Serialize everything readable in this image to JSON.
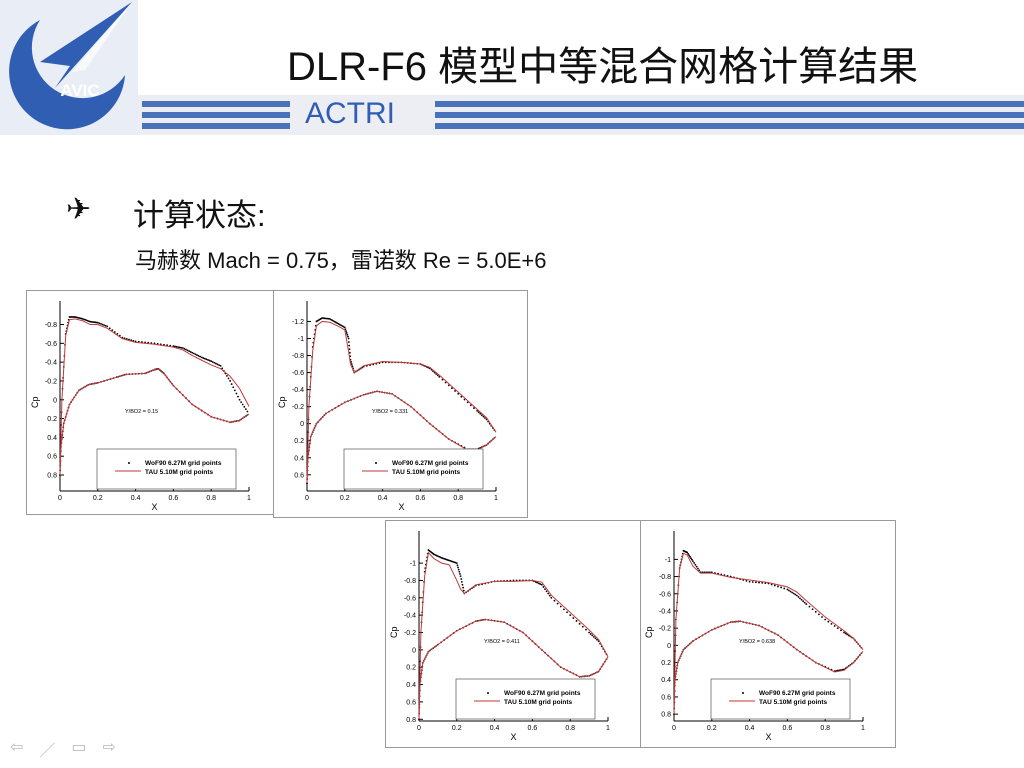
{
  "header": {
    "title": "DLR-F6 模型中等混合网格计算结果",
    "org": "ACTRI",
    "logo_text": "AVIC"
  },
  "bullet": {
    "icon": "airplane-icon",
    "heading": "计算状态:",
    "condition": "马赫数 Mach = 0.75，雷诺数 Re = 5.0E+6"
  },
  "colors": {
    "brand_blue": "#2f5eb3",
    "tau_line": "#c0393b",
    "wof_points": "#000000"
  },
  "nav": {
    "icons": [
      "arrow-left-icon",
      "pen-icon",
      "menu-icon",
      "arrow-right-icon"
    ]
  },
  "chart_data": [
    {
      "type": "line",
      "xlabel": "X",
      "ylabel": "Cp",
      "annotation": "Y/BO2 = 0.15",
      "ylim": [
        -1.05,
        0.97
      ],
      "xlim": [
        0,
        1
      ],
      "y_inverted": true,
      "xticks": [
        0,
        0.2,
        0.4,
        0.6,
        0.8,
        1
      ],
      "yticks": [
        -0.8,
        -0.6,
        -0.4,
        -0.2,
        0,
        0.2,
        0.4,
        0.6,
        0.8
      ],
      "legend": "bottom-center",
      "series": [
        {
          "name": "WoF90 6.27M grid points",
          "style": "points",
          "upper": {
            "x": [
              0,
              0.01,
              0.03,
              0.05,
              0.08,
              0.12,
              0.16,
              0.2,
              0.25,
              0.33,
              0.4,
              0.5,
              0.6,
              0.65,
              0.7,
              0.75,
              0.8,
              0.85,
              0.9,
              0.95,
              1.0
            ],
            "cp": [
              0.8,
              0.0,
              -0.7,
              -0.88,
              -0.88,
              -0.86,
              -0.83,
              -0.82,
              -0.78,
              -0.66,
              -0.62,
              -0.6,
              -0.57,
              -0.55,
              -0.5,
              -0.45,
              -0.41,
              -0.36,
              -0.2,
              0.0,
              0.15
            ]
          },
          "lower": {
            "x": [
              0,
              0.005,
              0.02,
              0.05,
              0.1,
              0.15,
              0.2,
              0.3,
              0.35,
              0.45,
              0.5,
              0.52,
              0.55,
              0.6,
              0.7,
              0.8,
              0.9,
              0.95,
              1.0
            ],
            "cp": [
              0.8,
              0.5,
              0.25,
              0.05,
              -0.1,
              -0.16,
              -0.18,
              -0.24,
              -0.27,
              -0.28,
              -0.32,
              -0.33,
              -0.28,
              -0.15,
              0.05,
              0.18,
              0.24,
              0.22,
              0.15
            ]
          }
        },
        {
          "name": "TAU 5.10M grid points",
          "style": "line",
          "upper": {
            "x": [
              0,
              0.01,
              0.03,
              0.05,
              0.08,
              0.12,
              0.16,
              0.2,
              0.25,
              0.33,
              0.4,
              0.5,
              0.6,
              0.65,
              0.7,
              0.75,
              0.8,
              0.85,
              0.9,
              0.95,
              1.0
            ],
            "cp": [
              0.8,
              0.0,
              -0.68,
              -0.85,
              -0.86,
              -0.84,
              -0.8,
              -0.8,
              -0.76,
              -0.65,
              -0.61,
              -0.59,
              -0.56,
              -0.53,
              -0.47,
              -0.42,
              -0.37,
              -0.33,
              -0.25,
              -0.12,
              0.07
            ]
          },
          "lower": {
            "x": [
              0,
              0.005,
              0.02,
              0.05,
              0.1,
              0.15,
              0.2,
              0.3,
              0.35,
              0.45,
              0.5,
              0.52,
              0.55,
              0.6,
              0.7,
              0.8,
              0.9,
              0.95,
              1.0
            ],
            "cp": [
              0.8,
              0.5,
              0.25,
              0.05,
              -0.1,
              -0.16,
              -0.18,
              -0.24,
              -0.27,
              -0.28,
              -0.32,
              -0.33,
              -0.28,
              -0.15,
              0.05,
              0.18,
              0.24,
              0.22,
              0.15
            ]
          }
        }
      ]
    },
    {
      "type": "line",
      "xlabel": "X",
      "ylabel": "Cp",
      "annotation": "Y/BO2 = 0.331",
      "ylim": [
        -1.44,
        0.79
      ],
      "xlim": [
        0,
        1
      ],
      "y_inverted": true,
      "xticks": [
        0,
        0.2,
        0.4,
        0.6,
        0.8,
        1
      ],
      "yticks": [
        -1.2,
        -1,
        -0.8,
        -0.6,
        -0.4,
        -0.2,
        0,
        0.2,
        0.4,
        0.6
      ],
      "legend": "bottom-center",
      "series": [
        {
          "name": "WoF90 6.27M grid points",
          "style": "points",
          "upper": {
            "x": [
              0,
              0.01,
              0.03,
              0.05,
              0.08,
              0.12,
              0.16,
              0.2,
              0.22,
              0.23,
              0.25,
              0.3,
              0.4,
              0.5,
              0.6,
              0.65,
              0.7,
              0.8,
              0.9,
              0.95,
              1.0
            ],
            "cp": [
              0.7,
              -0.2,
              -0.9,
              -1.2,
              -1.24,
              -1.23,
              -1.18,
              -1.13,
              -1.0,
              -0.75,
              -0.6,
              -0.67,
              -0.72,
              -0.72,
              -0.7,
              -0.65,
              -0.55,
              -0.35,
              -0.15,
              -0.05,
              0.1
            ]
          },
          "lower": {
            "x": [
              0,
              0.005,
              0.02,
              0.05,
              0.1,
              0.2,
              0.3,
              0.37,
              0.45,
              0.55,
              0.65,
              0.75,
              0.85,
              0.9,
              0.95,
              1.0
            ],
            "cp": [
              0.7,
              0.4,
              0.15,
              0.0,
              -0.12,
              -0.25,
              -0.34,
              -0.38,
              -0.35,
              -0.2,
              0.0,
              0.18,
              0.3,
              0.3,
              0.25,
              0.15
            ]
          }
        },
        {
          "name": "TAU 5.10M grid points",
          "style": "line",
          "upper": {
            "x": [
              0,
              0.01,
              0.03,
              0.05,
              0.08,
              0.12,
              0.16,
              0.2,
              0.22,
              0.23,
              0.25,
              0.3,
              0.4,
              0.5,
              0.6,
              0.65,
              0.7,
              0.8,
              0.9,
              0.95,
              1.0
            ],
            "cp": [
              0.7,
              -0.2,
              -0.85,
              -1.15,
              -1.2,
              -1.19,
              -1.15,
              -1.1,
              -0.85,
              -0.7,
              -0.6,
              -0.68,
              -0.73,
              -0.72,
              -0.7,
              -0.66,
              -0.57,
              -0.37,
              -0.17,
              -0.07,
              0.1
            ]
          },
          "lower": {
            "x": [
              0,
              0.005,
              0.02,
              0.05,
              0.1,
              0.2,
              0.3,
              0.37,
              0.45,
              0.55,
              0.65,
              0.75,
              0.85,
              0.9,
              0.95,
              1.0
            ],
            "cp": [
              0.7,
              0.4,
              0.15,
              0.0,
              -0.12,
              -0.25,
              -0.34,
              -0.38,
              -0.35,
              -0.2,
              0.0,
              0.18,
              0.31,
              0.31,
              0.25,
              0.15
            ]
          }
        }
      ]
    },
    {
      "type": "line",
      "xlabel": "X",
      "ylabel": "Cp",
      "annotation": "Y/BO2 = 0.411",
      "ylim": [
        -1.37,
        0.82
      ],
      "xlim": [
        0,
        1
      ],
      "y_inverted": true,
      "xticks": [
        0,
        0.2,
        0.4,
        0.6,
        0.8,
        1
      ],
      "yticks": [
        -1,
        -0.8,
        -0.6,
        -0.4,
        -0.2,
        0,
        0.2,
        0.4,
        0.6,
        0.8
      ],
      "legend": "bottom-center",
      "series": [
        {
          "name": "WoF90 6.27M grid points",
          "style": "points",
          "upper": {
            "x": [
              0,
              0.01,
              0.03,
              0.05,
              0.08,
              0.12,
              0.16,
              0.2,
              0.22,
              0.24,
              0.3,
              0.4,
              0.5,
              0.6,
              0.65,
              0.7,
              0.8,
              0.9,
              0.95,
              1.0
            ],
            "cp": [
              0.8,
              -0.2,
              -0.9,
              -1.15,
              -1.1,
              -1.06,
              -1.03,
              -1.0,
              -0.85,
              -0.65,
              -0.74,
              -0.79,
              -0.8,
              -0.8,
              -0.75,
              -0.6,
              -0.4,
              -0.2,
              -0.1,
              0.08
            ]
          },
          "lower": {
            "x": [
              0,
              0.005,
              0.02,
              0.05,
              0.1,
              0.2,
              0.3,
              0.35,
              0.45,
              0.55,
              0.65,
              0.75,
              0.85,
              0.9,
              0.95,
              1.0
            ],
            "cp": [
              0.8,
              0.4,
              0.15,
              0.02,
              -0.06,
              -0.22,
              -0.33,
              -0.35,
              -0.32,
              -0.2,
              0.0,
              0.2,
              0.31,
              0.3,
              0.25,
              0.08
            ]
          }
        },
        {
          "name": "TAU 5.10M grid points",
          "style": "line",
          "upper": {
            "x": [
              0,
              0.01,
              0.03,
              0.05,
              0.08,
              0.12,
              0.16,
              0.2,
              0.22,
              0.24,
              0.3,
              0.4,
              0.5,
              0.6,
              0.65,
              0.7,
              0.8,
              0.9,
              0.95,
              1.0
            ],
            "cp": [
              0.8,
              -0.2,
              -0.85,
              -1.12,
              -1.05,
              -1.0,
              -0.98,
              -0.8,
              -0.7,
              -0.65,
              -0.75,
              -0.79,
              -0.79,
              -0.8,
              -0.78,
              -0.63,
              -0.43,
              -0.23,
              -0.12,
              0.08
            ]
          },
          "lower": {
            "x": [
              0,
              0.005,
              0.02,
              0.05,
              0.1,
              0.2,
              0.3,
              0.35,
              0.45,
              0.55,
              0.65,
              0.75,
              0.85,
              0.9,
              0.95,
              1.0
            ],
            "cp": [
              0.8,
              0.4,
              0.15,
              0.02,
              -0.06,
              -0.22,
              -0.33,
              -0.35,
              -0.32,
              -0.2,
              0.0,
              0.2,
              0.31,
              0.3,
              0.25,
              0.08
            ]
          }
        }
      ]
    },
    {
      "type": "line",
      "xlabel": "X",
      "ylabel": "Cp",
      "annotation": "Y/BO2 = 0.638",
      "ylim": [
        -1.33,
        0.88
      ],
      "xlim": [
        0,
        1
      ],
      "y_inverted": true,
      "xticks": [
        0,
        0.2,
        0.4,
        0.6,
        0.8,
        1
      ],
      "yticks": [
        -1,
        -0.8,
        -0.6,
        -0.4,
        -0.2,
        0,
        0.2,
        0.4,
        0.6,
        0.8
      ],
      "legend": "bottom-center",
      "series": [
        {
          "name": "WoF90 6.27M grid points",
          "style": "points",
          "upper": {
            "x": [
              0,
              0.01,
              0.03,
              0.05,
              0.07,
              0.1,
              0.14,
              0.2,
              0.3,
              0.4,
              0.5,
              0.6,
              0.65,
              0.7,
              0.8,
              0.9,
              0.95,
              1.0
            ],
            "cp": [
              0.8,
              -0.3,
              -0.9,
              -1.1,
              -1.08,
              -0.98,
              -0.85,
              -0.85,
              -0.8,
              -0.74,
              -0.72,
              -0.65,
              -0.58,
              -0.48,
              -0.3,
              -0.15,
              -0.08,
              0.05
            ]
          },
          "lower": {
            "x": [
              0,
              0.005,
              0.02,
              0.05,
              0.1,
              0.2,
              0.3,
              0.35,
              0.45,
              0.55,
              0.65,
              0.75,
              0.85,
              0.9,
              0.95,
              1.0
            ],
            "cp": [
              0.8,
              0.4,
              0.2,
              0.05,
              -0.05,
              -0.18,
              -0.27,
              -0.28,
              -0.23,
              -0.12,
              0.05,
              0.2,
              0.3,
              0.28,
              0.2,
              0.07
            ]
          }
        },
        {
          "name": "TAU 5.10M grid points",
          "style": "line",
          "upper": {
            "x": [
              0,
              0.01,
              0.03,
              0.05,
              0.07,
              0.1,
              0.14,
              0.2,
              0.3,
              0.4,
              0.5,
              0.6,
              0.65,
              0.7,
              0.8,
              0.9,
              0.95,
              1.0
            ],
            "cp": [
              0.8,
              -0.3,
              -0.9,
              -1.07,
              -1.05,
              -0.92,
              -0.84,
              -0.84,
              -0.79,
              -0.76,
              -0.73,
              -0.68,
              -0.62,
              -0.52,
              -0.33,
              -0.17,
              -0.08,
              0.05
            ]
          },
          "lower": {
            "x": [
              0,
              0.005,
              0.02,
              0.05,
              0.1,
              0.2,
              0.3,
              0.35,
              0.45,
              0.55,
              0.65,
              0.75,
              0.85,
              0.9,
              0.95,
              1.0
            ],
            "cp": [
              0.8,
              0.4,
              0.2,
              0.05,
              -0.05,
              -0.18,
              -0.27,
              -0.28,
              -0.23,
              -0.12,
              0.05,
              0.2,
              0.31,
              0.29,
              0.2,
              0.07
            ]
          }
        }
      ]
    }
  ]
}
